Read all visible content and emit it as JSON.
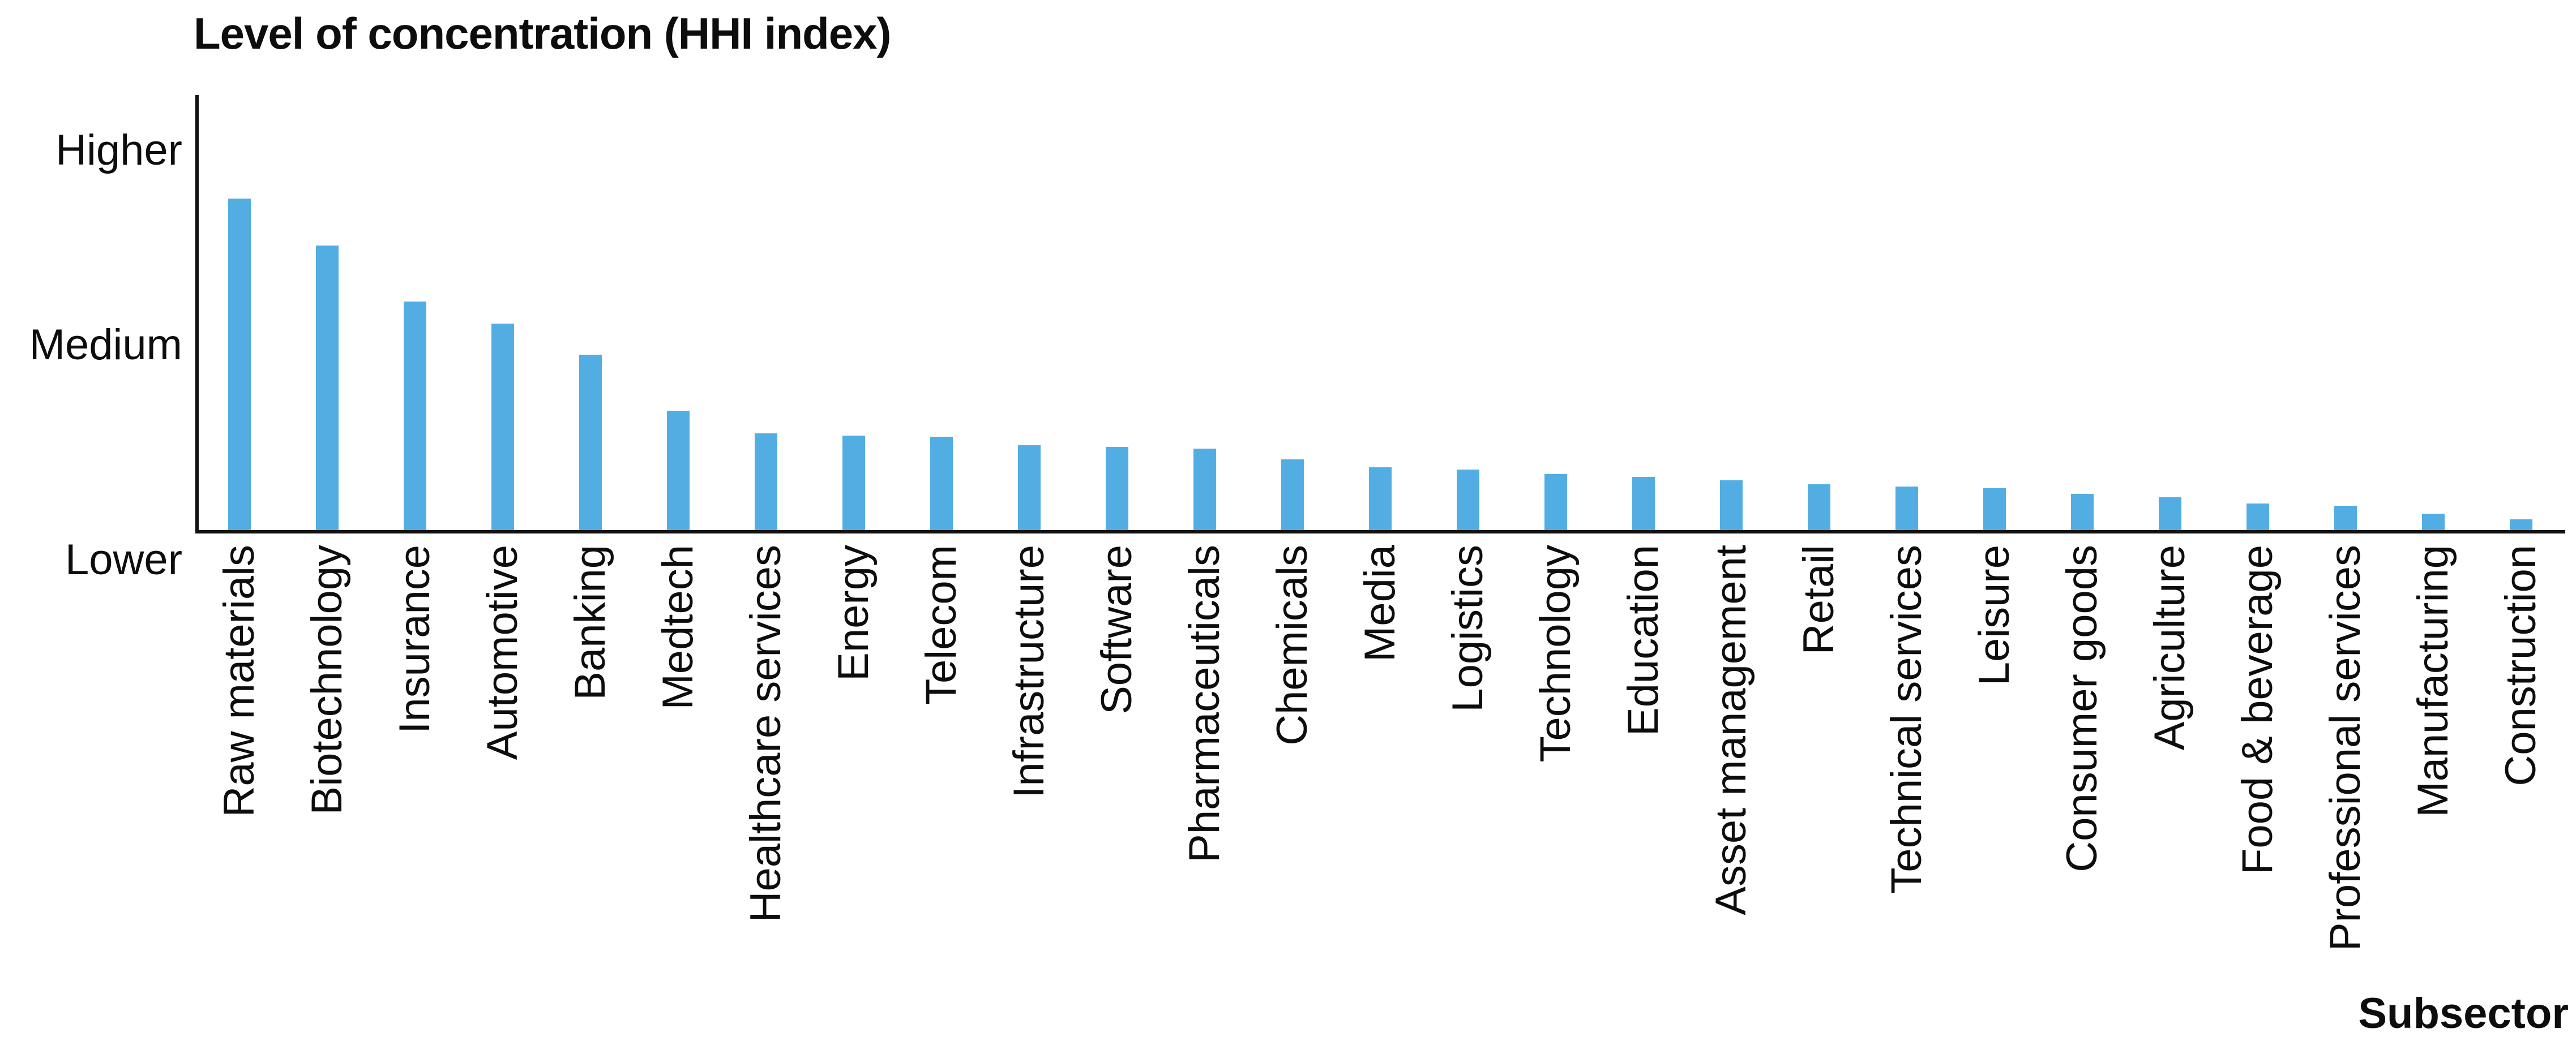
{
  "title": "Level of concentration (HHI index)",
  "x_axis_title": "Subsector",
  "y_ticks": {
    "high": "Higher",
    "mid": "Medium",
    "low": "Lower"
  },
  "colors": {
    "bar": "#52AEE2",
    "axis": "#111111",
    "text": "#0d0d0d"
  },
  "chart_data": {
    "type": "bar",
    "title": "Level of concentration (HHI index)",
    "xlabel": "Subsector",
    "ylabel": "Level of concentration (HHI index)",
    "legend": "none",
    "grid": "off",
    "y_axis_type": "qualitative",
    "y_tick_labels": [
      "Higher",
      "Medium",
      "Lower"
    ],
    "ylim_note": "values are bar heights as percent of full axis height (Lower=0, Higher=top)",
    "categories": [
      "Raw materials",
      "Biotechnology",
      "Insurance",
      "Automotive",
      "Banking",
      "Medtech",
      "Healthcare services",
      "Energy",
      "Telecom",
      "Infrastructure",
      "Software",
      "Pharmaceuticals",
      "Chemicals",
      "Media",
      "Logistics",
      "Technology",
      "Education",
      "Asset management",
      "Retail",
      "Technical services",
      "Leisure",
      "Consumer goods",
      "Agriculture",
      "Food & beverage",
      "Professional services",
      "Manufacturing",
      "Construction"
    ],
    "values": [
      76.2,
      65.4,
      52.6,
      47.5,
      40.4,
      27.5,
      22.3,
      21.8,
      21.5,
      19.6,
      19.2,
      18.8,
      16.3,
      14.5,
      14.0,
      13.0,
      12.4,
      11.5,
      10.6,
      10.1,
      9.7,
      8.5,
      7.6,
      6.2,
      5.7,
      3.9,
      2.6
    ]
  }
}
